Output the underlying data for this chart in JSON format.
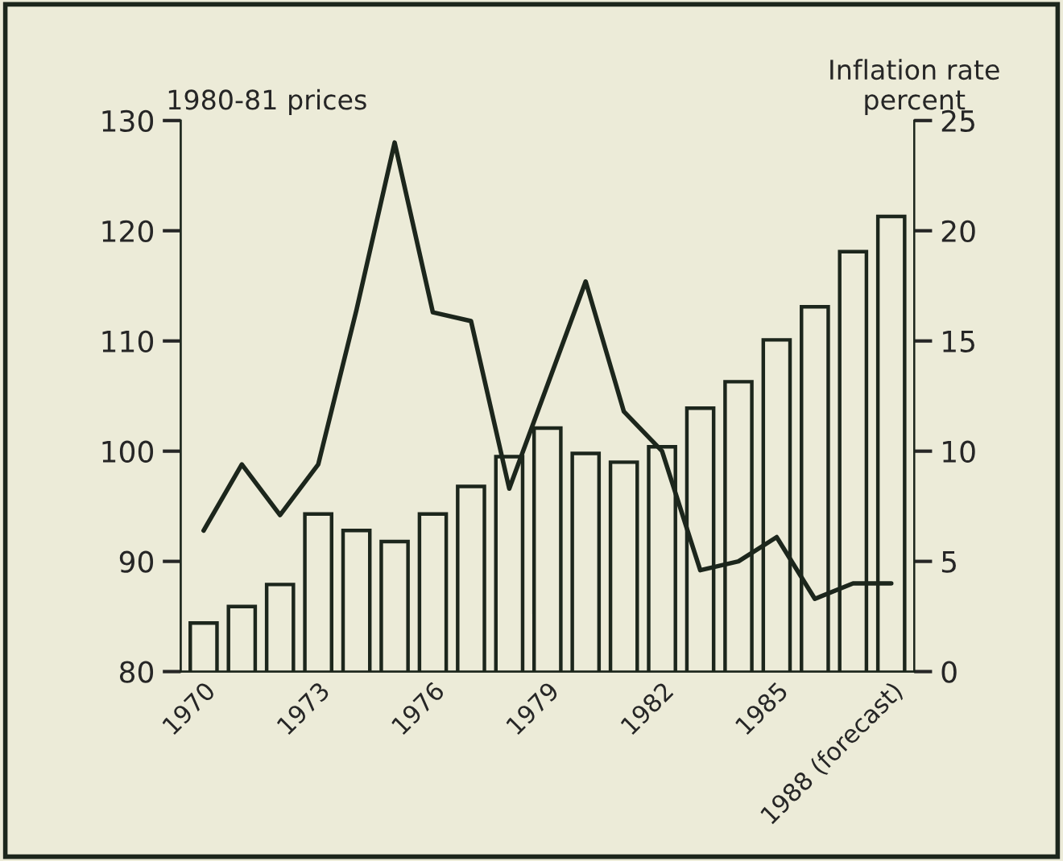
{
  "chart_data": {
    "type": "bar",
    "ylabel": "1980-81 prices",
    "y2label": "Inflation rate\npercent",
    "categories": [
      "1970",
      null,
      null,
      "1973",
      null,
      null,
      "1976",
      null,
      null,
      "1979",
      null,
      null,
      "1982",
      null,
      null,
      "1985",
      null,
      null,
      "1988 (forecast)"
    ],
    "series": [
      {
        "color": "#1c261c",
        "values": [
          84.4,
          85.9,
          87.9,
          94.3,
          92.8,
          91.8,
          94.3,
          96.8,
          99.5,
          102.1,
          99.8,
          99.0,
          100.4,
          103.9,
          106.3,
          110.1,
          113.1,
          118.1,
          121.3
        ]
      },
      {
        "type": "line",
        "axis": "y2",
        "color": "#1c261c",
        "values": [
          6.4,
          9.4,
          7.1,
          9.4,
          16.4,
          24.0,
          16.3,
          15.9,
          8.3,
          13.0,
          17.7,
          11.8,
          10.0,
          4.6,
          5.0,
          6.1,
          3.3,
          4.0,
          4.0
        ]
      }
    ],
    "ylim": [
      80,
      130
    ],
    "yticks": [
      80,
      90,
      100,
      110,
      120,
      130
    ],
    "y2lim": [
      0,
      25
    ],
    "y2ticks": [
      0,
      5,
      10,
      15,
      20,
      25
    ],
    "grid": false,
    "legend": false
  }
}
